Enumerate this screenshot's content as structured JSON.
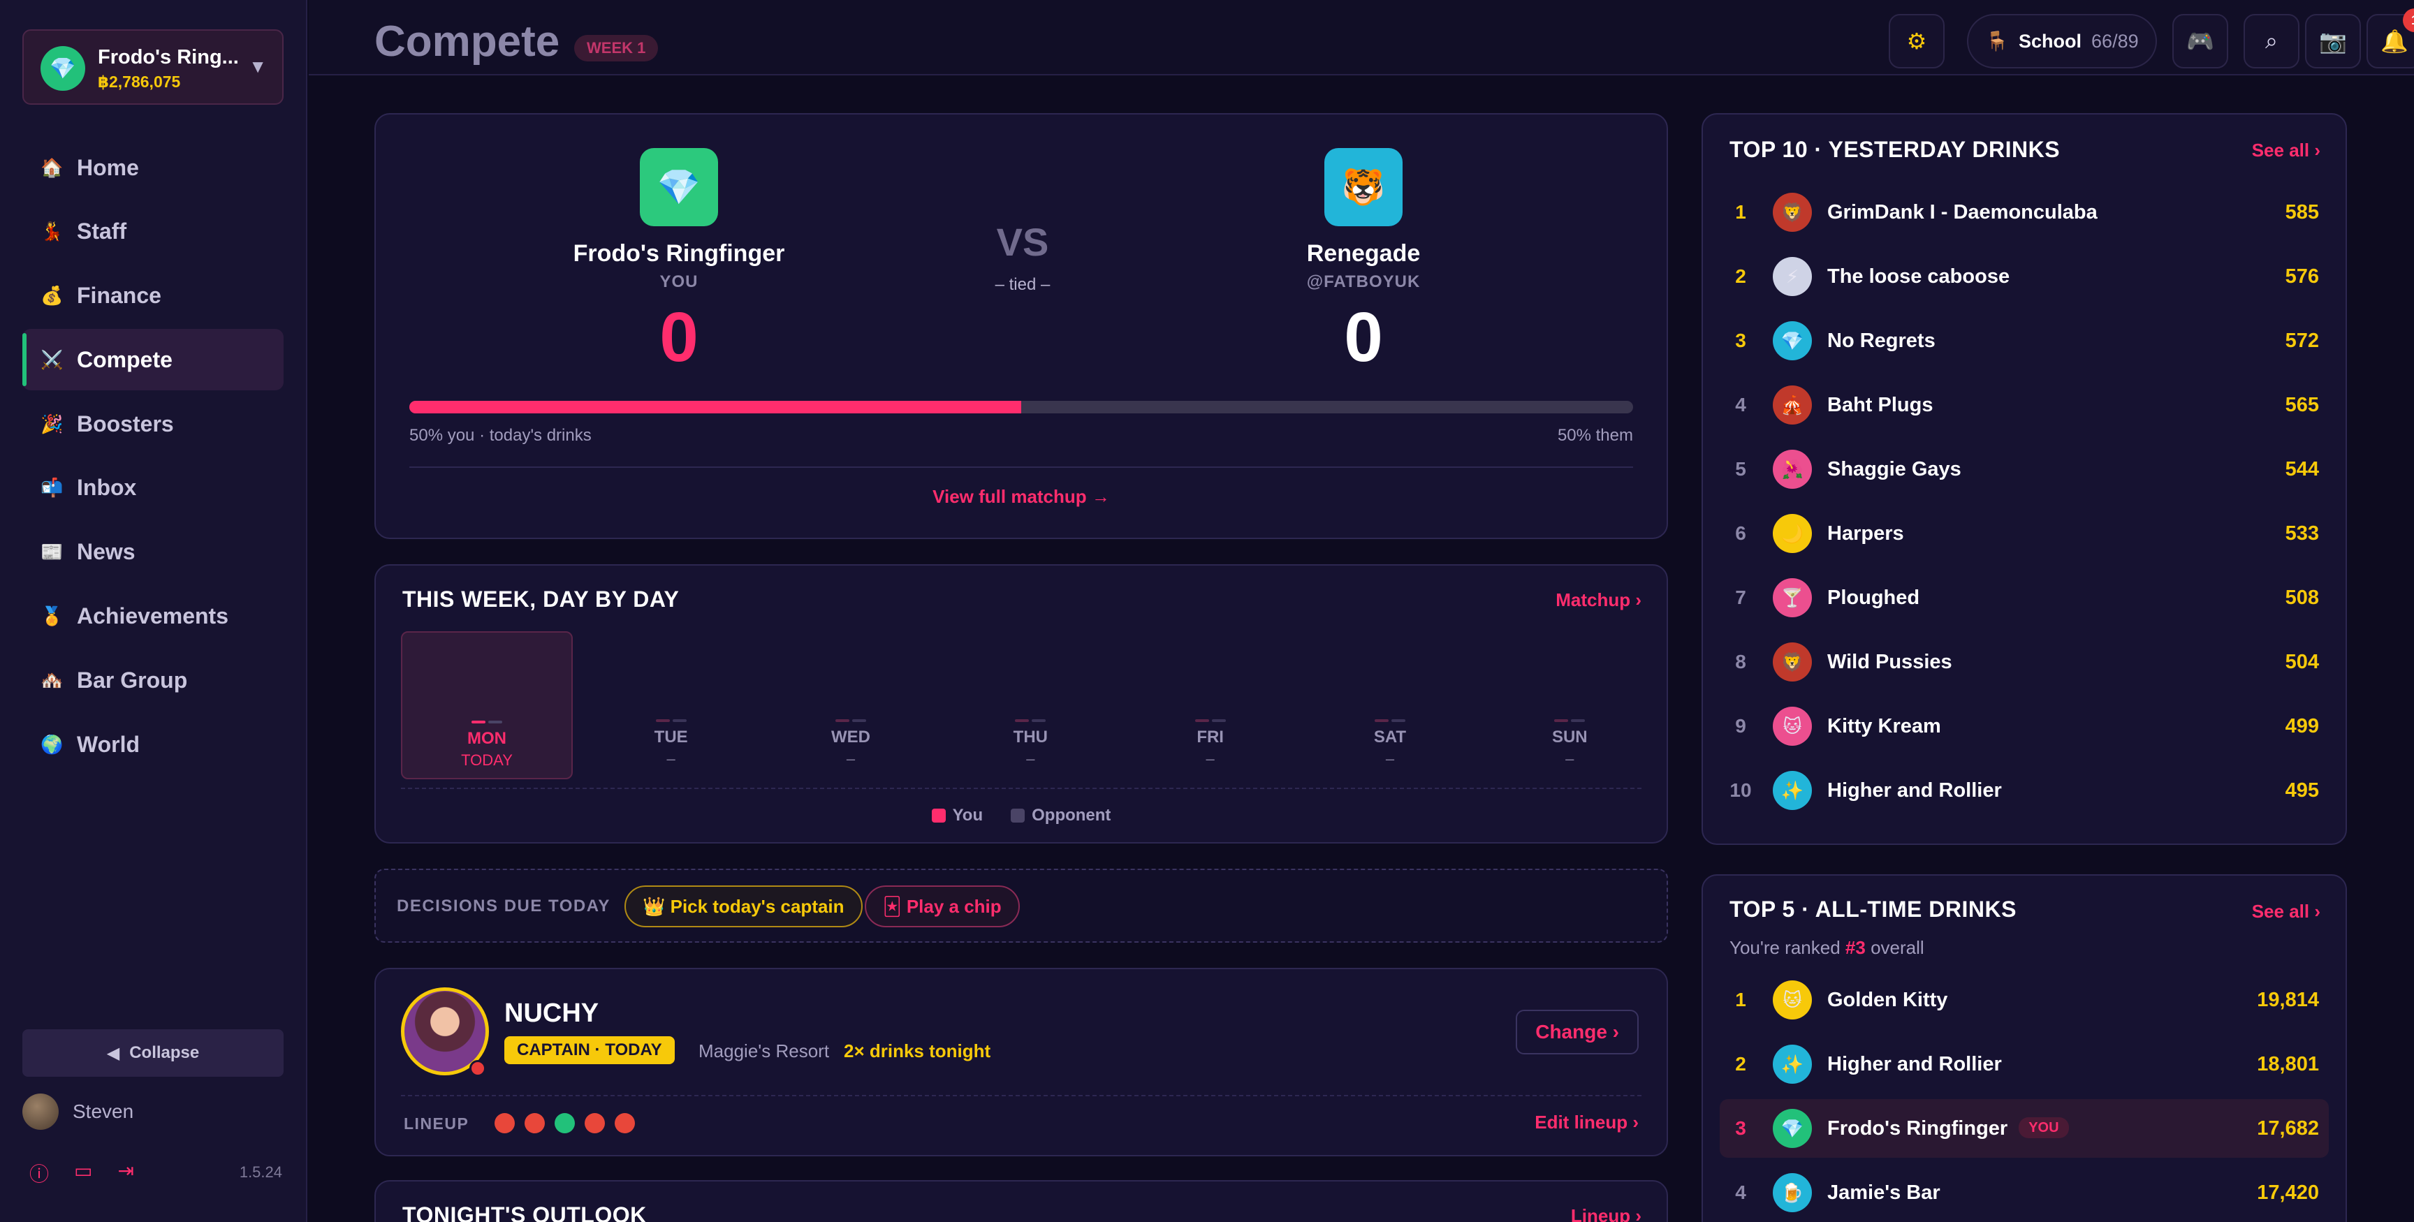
{
  "sidebar": {
    "account": {
      "name": "Frodo's Ring...",
      "balance": "฿2,786,075",
      "avatar_icon": "💎"
    },
    "nav": [
      {
        "label": "Home",
        "icon": "🏠"
      },
      {
        "label": "Staff",
        "icon": "💃"
      },
      {
        "label": "Finance",
        "icon": "💰"
      },
      {
        "label": "Compete",
        "icon": "⚔️",
        "active": true
      },
      {
        "label": "Boosters",
        "icon": "🎉"
      },
      {
        "label": "Inbox",
        "icon": "📬"
      },
      {
        "label": "News",
        "icon": "📰"
      },
      {
        "label": "Achievements",
        "icon": "🏅"
      },
      {
        "label": "Bar Group",
        "icon": "🏘️"
      },
      {
        "label": "World",
        "icon": "🌍"
      }
    ],
    "collapse_label": "Collapse",
    "user_name": "Steven",
    "version": "1.5.24"
  },
  "topbar": {
    "title": "Compete",
    "week_badge": "WEEK 1",
    "school_label": "School",
    "school_count": "66/89",
    "notification_count": "1"
  },
  "matchup": {
    "you": {
      "name": "Frodo's Ringfinger",
      "sub": "YOU",
      "score": "0",
      "icon": "💎"
    },
    "vs": "VS",
    "status": "– tied –",
    "them": {
      "name": "Renegade",
      "sub": "@FATBOYUK",
      "score": "0",
      "icon": "🐯"
    },
    "progress_you_pct": 50,
    "left_label": "50% you · today's drinks",
    "right_label": "50% them",
    "link": "View full matchup →"
  },
  "week": {
    "title": "THIS WEEK, DAY BY DAY",
    "link": "Matchup ›",
    "days": [
      {
        "name": "MON",
        "value": "TODAY",
        "today": true
      },
      {
        "name": "TUE",
        "value": "–"
      },
      {
        "name": "WED",
        "value": "–"
      },
      {
        "name": "THU",
        "value": "–"
      },
      {
        "name": "FRI",
        "value": "–"
      },
      {
        "name": "SAT",
        "value": "–"
      },
      {
        "name": "SUN",
        "value": "–"
      }
    ],
    "legend_you": "You",
    "legend_opp": "Opponent"
  },
  "decisions": {
    "label": "DECISIONS DUE TODAY",
    "captain_btn": "👑 Pick today's captain",
    "chip_btn": "🃏 Play a chip"
  },
  "captain": {
    "name": "NUCHY",
    "badge": "CAPTAIN · TODAY",
    "location": "Maggie's Resort",
    "bonus": "2× drinks tonight",
    "change_btn": "Change ›",
    "lineup_label": "LINEUP",
    "edit_lineup": "Edit lineup ›"
  },
  "outlook": {
    "title": "TONIGHT'S OUTLOOK",
    "link": "Lineup ›"
  },
  "top10": {
    "title": "TOP 10 · YESTERDAY DRINKS",
    "link": "See all ›",
    "rows": [
      {
        "rank": "1",
        "name": "GrimDank I - Daemonculaba",
        "value": "585",
        "icon": "🦁",
        "color": "#c0392b"
      },
      {
        "rank": "2",
        "name": "The loose caboose",
        "value": "576",
        "icon": "⚡",
        "color": "#cfd3e6"
      },
      {
        "rank": "3",
        "name": "No Regrets",
        "value": "572",
        "icon": "💎",
        "color": "#22b5d9"
      },
      {
        "rank": "4",
        "name": "Baht Plugs",
        "value": "565",
        "icon": "🎪",
        "color": "#c0392b"
      },
      {
        "rank": "5",
        "name": "Shaggie Gays",
        "value": "544",
        "icon": "🌺",
        "color": "#ec4f8f"
      },
      {
        "rank": "6",
        "name": "Harpers",
        "value": "533",
        "icon": "🌙",
        "color": "#f7c90a"
      },
      {
        "rank": "7",
        "name": "Ploughed",
        "value": "508",
        "icon": "🍸",
        "color": "#ec4f8f"
      },
      {
        "rank": "8",
        "name": "Wild Pussies",
        "value": "504",
        "icon": "🦁",
        "color": "#c0392b"
      },
      {
        "rank": "9",
        "name": "Kitty Kream",
        "value": "499",
        "icon": "🐱",
        "color": "#ec4f8f"
      },
      {
        "rank": "10",
        "name": "Higher and Rollier",
        "value": "495",
        "icon": "✨",
        "color": "#22b5d9"
      }
    ]
  },
  "top5": {
    "title": "TOP 5 · ALL-TIME DRINKS",
    "link": "See all ›",
    "note_prefix": "You're ranked",
    "note_rank": "#3",
    "note_suffix": "overall",
    "you_tag": "YOU",
    "rows": [
      {
        "rank": "1",
        "name": "Golden Kitty",
        "value": "19,814",
        "icon": "🐱",
        "color": "#f7c90a"
      },
      {
        "rank": "2",
        "name": "Higher and Rollier",
        "value": "18,801",
        "icon": "✨",
        "color": "#22b5d9"
      },
      {
        "rank": "3",
        "name": "Frodo's Ringfinger",
        "value": "17,682",
        "icon": "💎",
        "color": "#22c17a",
        "me": true
      },
      {
        "rank": "4",
        "name": "Jamie's Bar",
        "value": "17,420",
        "icon": "🍺",
        "color": "#22b5d9"
      }
    ]
  },
  "colors": {
    "accent": "#ff2d6d",
    "gold": "#f7c90a",
    "green": "#22c17a",
    "background": "#0d0b1f"
  }
}
